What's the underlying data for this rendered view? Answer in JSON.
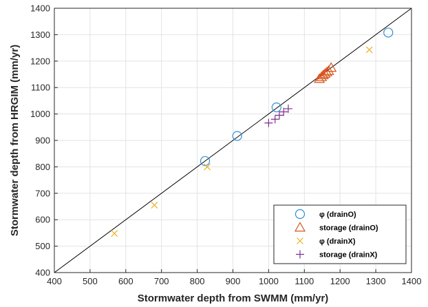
{
  "chart_data": {
    "type": "scatter",
    "xlabel": "Stormwater depth from SWMM (mm/yr)",
    "ylabel": "Stormwater depth from HRGIM (mm/yr)",
    "xlim": [
      400,
      1400
    ],
    "ylim": [
      400,
      1400
    ],
    "xticks": [
      400,
      500,
      600,
      700,
      800,
      900,
      1000,
      1100,
      1200,
      1300,
      1400
    ],
    "yticks": [
      400,
      500,
      600,
      700,
      800,
      900,
      1000,
      1100,
      1200,
      1300,
      1400
    ],
    "grid": true,
    "legend_position": "bottom-right",
    "reference_line": {
      "x": [
        400,
        1400
      ],
      "y": [
        400,
        1400
      ],
      "color": "#000000"
    },
    "series": [
      {
        "name": "φ (drainO)",
        "marker": "circle",
        "color": "#2f8fd1",
        "points": [
          [
            822,
            822
          ],
          [
            912,
            917
          ],
          [
            1022,
            1025
          ],
          [
            1335,
            1308
          ]
        ]
      },
      {
        "name": "storage (drainO)",
        "marker": "triangle",
        "color": "#d95319",
        "points": [
          [
            1142,
            1133
          ],
          [
            1148,
            1140
          ],
          [
            1153,
            1147
          ],
          [
            1158,
            1152
          ],
          [
            1163,
            1158
          ],
          [
            1168,
            1163
          ],
          [
            1175,
            1175
          ]
        ]
      },
      {
        "name": "φ (drainX)",
        "marker": "x",
        "color": "#edb120",
        "points": [
          [
            568,
            548
          ],
          [
            680,
            655
          ],
          [
            828,
            800
          ],
          [
            1282,
            1243
          ]
        ]
      },
      {
        "name": "storage (drainX)",
        "marker": "plus",
        "color": "#7e2f8e",
        "points": [
          [
            1000,
            966
          ],
          [
            1018,
            980
          ],
          [
            1030,
            995
          ],
          [
            1042,
            1008
          ],
          [
            1055,
            1020
          ]
        ]
      }
    ]
  }
}
